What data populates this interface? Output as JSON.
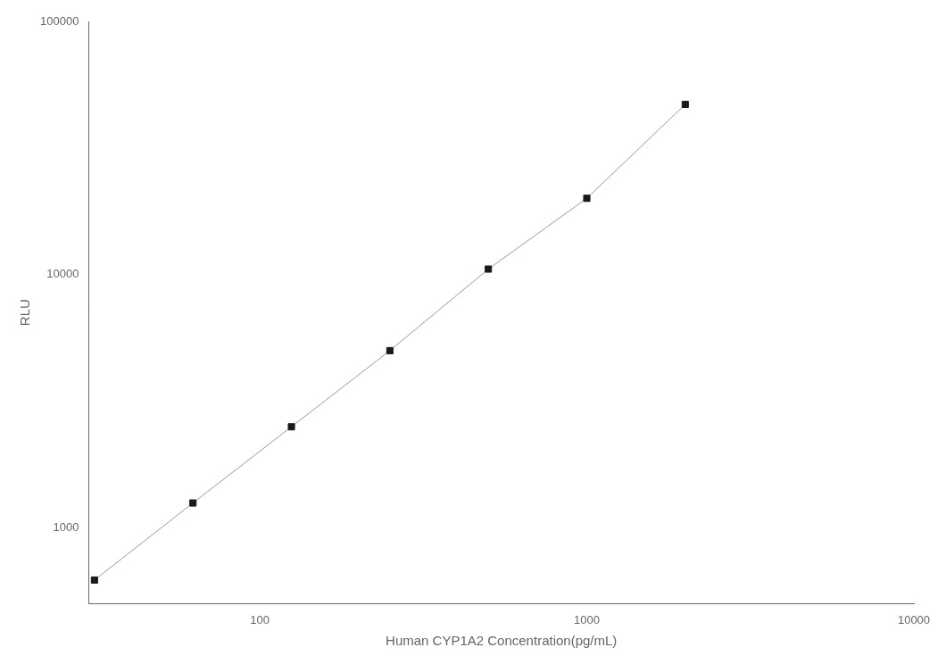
{
  "chart_data": {
    "type": "line",
    "x": [
      31.25,
      62.5,
      125,
      250,
      500,
      1000,
      2000
    ],
    "values": [
      620,
      1250,
      2500,
      5000,
      10500,
      20000,
      47000
    ],
    "xlabel": "Human CYP1A2 Concentration(pg/mL)",
    "ylabel": "RLU",
    "xlim": [
      30,
      10000
    ],
    "ylim": [
      500,
      100000
    ],
    "xticks": [
      100,
      1000,
      10000
    ],
    "yticks": [
      1000,
      10000,
      100000
    ],
    "log": true,
    "grid": false,
    "color": "#999999",
    "colors": [
      "#1a1a1a",
      "#1a1a1a",
      "#1a1a1a",
      "#1a1a1a",
      "#1a1a1a",
      "#1a1a1a",
      "#1a1a1a"
    ],
    "marker": "square"
  }
}
